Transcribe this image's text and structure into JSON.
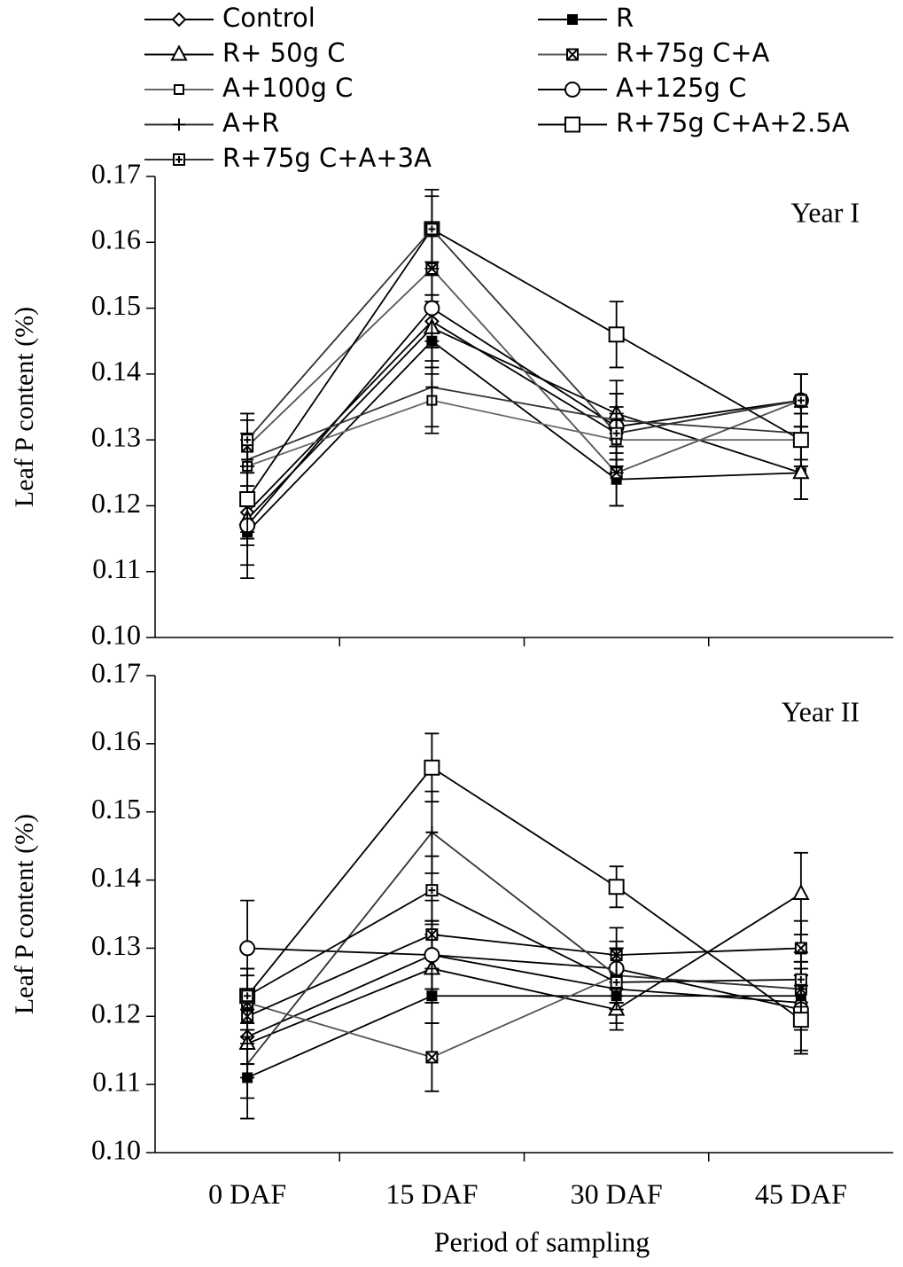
{
  "chart_data": [
    {
      "type": "line",
      "annotation": "Year I",
      "y_label": "Leaf P content (%)",
      "ylim": [
        0.1,
        0.17
      ],
      "yticks": [
        {
          "value": 0.1,
          "label": "0.10"
        },
        0.11,
        0.12,
        0.13,
        0.14,
        0.15,
        0.16,
        0.17
      ],
      "series": [
        {
          "name": "Control",
          "color": "#000000",
          "marker": "diamond",
          "values": [
            0.119,
            0.148,
            0.131,
            0.136
          ],
          "errors": [
            0.004,
            0.004,
            0.004,
            0.004
          ]
        },
        {
          "name": "R",
          "color": "#000000",
          "marker": "square-filled",
          "values": [
            0.116,
            0.145,
            0.124,
            0.125
          ],
          "errors": [
            0.005,
            0.005,
            0.004,
            0.004
          ]
        },
        {
          "name": "R+ 50g C",
          "color": "#000000",
          "marker": "triangle",
          "values": [
            0.118,
            0.147,
            0.134,
            0.125
          ],
          "errors": [
            0.004,
            0.005,
            0.005,
            0.004
          ]
        },
        {
          "name": "R+75g C+A",
          "color": "#555555",
          "marker": "x-square",
          "values": [
            0.129,
            0.156,
            0.125,
            0.136
          ],
          "errors": [
            0.004,
            0.005,
            0.005,
            0.004
          ]
        },
        {
          "name": "A+100g C",
          "color": "#666666",
          "marker": "square-small",
          "values": [
            0.126,
            0.136,
            0.13,
            0.13
          ],
          "errors": [
            0.004,
            0.005,
            0.004,
            0.004
          ]
        },
        {
          "name": "A+125g C",
          "color": "#000000",
          "marker": "circle",
          "values": [
            0.117,
            0.15,
            0.132,
            0.136
          ],
          "errors": [
            0.008,
            0.005,
            0.005,
            0.004
          ]
        },
        {
          "name": "A+R",
          "color": "#333333",
          "marker": "plus",
          "values": [
            0.127,
            0.138,
            0.133,
            0.131
          ],
          "errors": [
            0.004,
            0.006,
            0.004,
            0.004
          ]
        },
        {
          "name": "R+75g C+A+2.5A",
          "color": "#000000",
          "marker": "square",
          "values": [
            0.121,
            0.162,
            0.146,
            0.13
          ],
          "errors": [
            0.005,
            0.006,
            0.005,
            0.004
          ]
        },
        {
          "name": "R+75g C+A+3A",
          "color": "#333333",
          "marker": "plus-square",
          "values": [
            0.13,
            0.162,
            0.131,
            0.136
          ],
          "errors": [
            0.004,
            0.005,
            0.006,
            0.004
          ]
        }
      ]
    },
    {
      "type": "line",
      "annotation": "Year II",
      "y_label": "Leaf P content (%)",
      "x_label": "Period of sampling",
      "categories": [
        "0 DAF",
        "15 DAF",
        "30 DAF",
        "45 DAF"
      ],
      "ylim": [
        0.1,
        0.17
      ],
      "yticks": [
        {
          "value": 0.1,
          "label": "0.10"
        },
        0.11,
        0.12,
        0.13,
        0.14,
        0.15,
        0.16,
        0.17
      ],
      "series": [
        {
          "color": "#000000",
          "marker": "diamond",
          "values": [
            0.117,
            0.129,
            0.124,
            0.122
          ],
          "errors": [
            0.004,
            0.005,
            0.003,
            0.004
          ]
        },
        {
          "color": "#000000",
          "marker": "square-filled",
          "values": [
            0.111,
            0.123,
            0.123,
            0.123
          ],
          "errors": [
            0.006,
            0.004,
            0.004,
            0.004
          ]
        },
        {
          "color": "#000000",
          "marker": "triangle",
          "values": [
            0.116,
            0.127,
            0.121,
            0.138
          ],
          "errors": [
            0.005,
            0.005,
            0.003,
            0.006
          ]
        },
        {
          "color": "#555555",
          "marker": "x-square",
          "values": [
            0.122,
            0.114,
            0.126,
            0.124
          ],
          "errors": [
            0.004,
            0.005,
            0.004,
            0.004
          ]
        },
        {
          "color": "#000000",
          "marker": "x-square",
          "values": [
            0.12,
            0.132,
            0.129,
            0.13
          ],
          "errors": [
            0.004,
            0.005,
            0.004,
            0.004
          ]
        },
        {
          "color": "#000000",
          "marker": "circle",
          "values": [
            0.13,
            0.129,
            0.127,
            0.121
          ],
          "errors": [
            0.007,
            0.005,
            0.004,
            0.006
          ]
        },
        {
          "color": "#333333",
          "marker": "plus",
          "values": [
            0.113,
            0.147,
            0.126,
            0.124
          ],
          "errors": [
            0.005,
            0.006,
            0.004,
            0.004
          ]
        },
        {
          "color": "#000000",
          "marker": "square",
          "values": [
            0.123,
            0.1565,
            0.139,
            0.1195
          ],
          "errors": [
            0.004,
            0.005,
            0.003,
            0.005
          ]
        },
        {
          "color": "#000000",
          "marker": "plus-square",
          "values": [
            0.123,
            0.1385,
            0.125,
            0.1254
          ],
          "errors": [
            0.004,
            0.005,
            0.004,
            0.004
          ]
        }
      ]
    }
  ]
}
